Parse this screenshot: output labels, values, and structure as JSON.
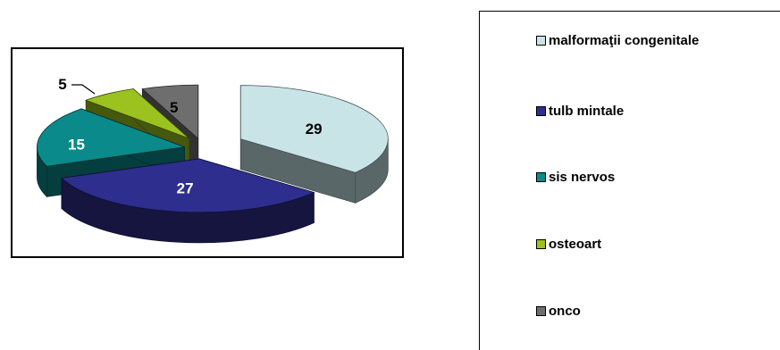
{
  "chart_data": {
    "type": "pie",
    "title": "",
    "categories": [
      "malformaţii congenitale",
      "tulb mintale",
      "sis nervos",
      "osteoart",
      "onco"
    ],
    "values": [
      29,
      27,
      15,
      5,
      5
    ],
    "colors": [
      "#C9E4E6",
      "#2E2E8E",
      "#0A8A8A",
      "#9BC21E",
      "#6E6E6E"
    ],
    "label_colors": [
      "#000000",
      "#ffffff",
      "#ffffff",
      "#000000",
      "#000000"
    ],
    "exploded": true,
    "three_d": true,
    "legend_position": "right"
  }
}
